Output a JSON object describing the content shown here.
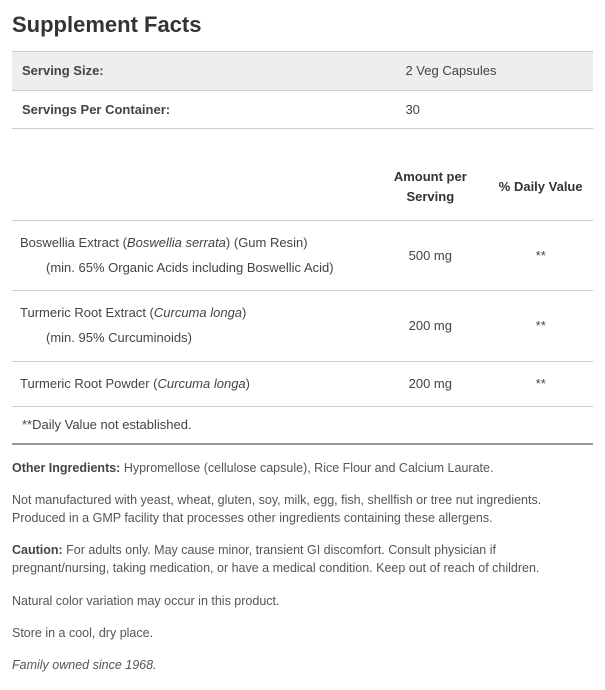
{
  "title": "Supplement Facts",
  "serving": {
    "size_label": "Serving Size:",
    "size_value": "2 Veg Capsules",
    "per_container_label": "Servings Per Container:",
    "per_container_value": "30"
  },
  "headers": {
    "amount": "Amount per Serving",
    "dv": "% Daily Value"
  },
  "ingredients": [
    {
      "name_pre": "Boswellia Extract (",
      "sci": "Boswellia serrata",
      "name_post": ") (Gum Resin)",
      "sub": "(min. 65% Organic Acids including Boswellic Acid)",
      "amount": "500 mg",
      "dv": "**"
    },
    {
      "name_pre": "Turmeric Root Extract (",
      "sci": "Curcuma longa",
      "name_post": ")",
      "sub": "(min. 95% Curcuminoids)",
      "amount": "200 mg",
      "dv": "**"
    },
    {
      "name_pre": "Turmeric Root Powder (",
      "sci": "Curcuma longa",
      "name_post": ")",
      "sub": "",
      "amount": "200 mg",
      "dv": "**"
    }
  ],
  "footnote": "**Daily Value not established.",
  "other_label": "Other Ingredients:",
  "other_text": " Hypromellose (cellulose capsule), Rice Flour and Calcium Laurate.",
  "allergen": "Not manufactured with yeast, wheat, gluten, soy, milk, egg, fish, shellfish or tree nut ingredients. Produced in a GMP facility that processes other ingredients containing these allergens.",
  "caution_label": "Caution:",
  "caution_text": " For adults only. May cause minor, transient GI discomfort. Consult physician if pregnant/nursing, taking medication, or have a medical condition. Keep out of reach of children.",
  "color_note": "Natural color variation may occur in this product.",
  "storage": "Store in a cool, dry place.",
  "family": "Family owned since 1968."
}
